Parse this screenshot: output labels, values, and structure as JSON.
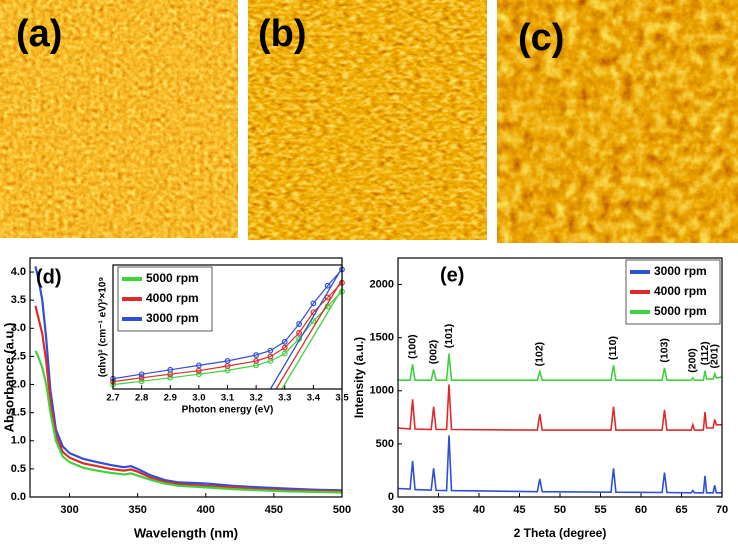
{
  "panel_labels": [
    "(a)",
    "(b)",
    "(c)",
    "(d)",
    "(e)"
  ],
  "chart_data": [
    {
      "type": "line",
      "y_label": "Absorbance (a.u.)",
      "x_label": "Wavelength (nm)",
      "xlim": [
        271,
        500
      ],
      "xticks": [
        300,
        350,
        400,
        450,
        500
      ],
      "ylim": [
        0,
        4.25
      ],
      "yticks": [
        {
          "value": 0,
          "label": "0.0"
        },
        0.5,
        {
          "value": 1,
          "label": "1.0"
        },
        1.5,
        {
          "value": 2,
          "label": "2.0"
        },
        2.5,
        {
          "value": 3,
          "label": "3.0"
        },
        3.5,
        {
          "value": 4,
          "label": "4.0"
        }
      ],
      "x": [
        275,
        277,
        280,
        283,
        286,
        290,
        295,
        300,
        310,
        320,
        330,
        340,
        345,
        350,
        360,
        370,
        380,
        400,
        420,
        440,
        460,
        480,
        500
      ],
      "series": [
        {
          "color": "#2f4fd8",
          "values": [
            4.1,
            3.9,
            3.5,
            2.8,
            1.9,
            1.2,
            0.9,
            0.78,
            0.68,
            0.62,
            0.57,
            0.53,
            0.55,
            0.5,
            0.38,
            0.3,
            0.26,
            0.24,
            0.2,
            0.17,
            0.15,
            0.13,
            0.12
          ]
        },
        {
          "color": "#e02a2a",
          "values": [
            3.4,
            3.2,
            2.9,
            2.4,
            1.7,
            1.1,
            0.8,
            0.7,
            0.6,
            0.55,
            0.5,
            0.47,
            0.49,
            0.45,
            0.34,
            0.27,
            0.23,
            0.2,
            0.17,
            0.14,
            0.12,
            0.11,
            0.1
          ]
        },
        {
          "color": "#3fd23f",
          "values": [
            2.6,
            2.5,
            2.3,
            2.0,
            1.5,
            1.0,
            0.72,
            0.62,
            0.52,
            0.47,
            0.43,
            0.4,
            0.42,
            0.38,
            0.3,
            0.24,
            0.2,
            0.17,
            0.14,
            0.12,
            0.1,
            0.09,
            0.08
          ]
        }
      ]
    },
    {
      "type": "line",
      "markers": true,
      "legend": "upper left",
      "y_label": "(αhν)² (cm⁻¹ eV)²×10⁹",
      "x_label": "Photon energy (eV)",
      "xlim": [
        2.7,
        3.5
      ],
      "xticks": [
        2.7,
        2.8,
        2.9,
        {
          "value": 3,
          "label": "3.0"
        },
        3.1,
        3.2,
        3.3,
        3.4,
        3.5
      ],
      "ylim": [
        0,
        4.2
      ],
      "x": [
        2.7,
        2.8,
        2.9,
        3.0,
        3.1,
        3.2,
        3.25,
        3.3,
        3.35,
        3.4,
        3.45,
        3.5
      ],
      "series": [
        {
          "name": "5000 rpm",
          "color": "#3fd23f",
          "values": [
            0.15,
            0.26,
            0.38,
            0.5,
            0.63,
            0.8,
            0.95,
            1.2,
            1.7,
            2.3,
            2.8,
            3.3
          ]
        },
        {
          "name": "4000 rpm",
          "color": "#e02a2a",
          "values": [
            0.25,
            0.38,
            0.5,
            0.62,
            0.78,
            0.95,
            1.1,
            1.4,
            1.9,
            2.6,
            3.1,
            3.6
          ]
        },
        {
          "name": "3000 rpm",
          "color": "#2f4fd8",
          "values": [
            0.35,
            0.5,
            0.65,
            0.8,
            0.95,
            1.15,
            1.3,
            1.6,
            2.2,
            2.9,
            3.5,
            4.05
          ]
        }
      ],
      "fits": [
        {
          "color": "#3fd23f",
          "x": [
            3.29,
            3.5
          ],
          "values": [
            0,
            3.4
          ]
        },
        {
          "color": "#e02a2a",
          "x": [
            3.27,
            3.5
          ],
          "values": [
            0,
            3.7
          ]
        },
        {
          "color": "#2f4fd8",
          "x": [
            3.25,
            3.5
          ],
          "values": [
            0,
            4.1
          ]
        }
      ]
    },
    {
      "type": "line",
      "legend": "upper right",
      "y_label": "Intensity (a.u.)",
      "x_label": "2 Theta (degree)",
      "xlim": [
        30,
        70
      ],
      "xticks": [
        30,
        35,
        40,
        45,
        50,
        55,
        60,
        65,
        70
      ],
      "ylim": [
        0,
        2250
      ],
      "yticks": [
        0,
        500,
        1000,
        1500,
        2000
      ],
      "x": [
        30,
        31.5,
        31.8,
        32.1,
        34.1,
        34.4,
        34.7,
        36.0,
        36.3,
        36.6,
        47.2,
        47.5,
        47.8,
        56.3,
        56.6,
        56.9,
        62.6,
        62.9,
        63.2,
        66.2,
        66.4,
        66.6,
        67.7,
        67.9,
        68.1,
        68.9,
        69.1,
        69.3,
        70
      ],
      "series": [
        {
          "name": "3000 rpm",
          "color": "#2f4fd8",
          "values": [
            80,
            75,
            340,
            70,
            65,
            270,
            62,
            60,
            580,
            60,
            50,
            170,
            50,
            45,
            270,
            45,
            42,
            230,
            42,
            40,
            60,
            40,
            40,
            200,
            40,
            40,
            110,
            40,
            40
          ]
        },
        {
          "name": "4000 rpm",
          "color": "#e02a2a",
          "values": [
            650,
            640,
            920,
            640,
            635,
            850,
            635,
            635,
            1060,
            635,
            630,
            780,
            630,
            630,
            850,
            630,
            630,
            820,
            630,
            630,
            680,
            630,
            630,
            800,
            650,
            650,
            730,
            680,
            680
          ]
        },
        {
          "name": "5000 rpm",
          "color": "#3fd23f",
          "values": [
            1100,
            1100,
            1250,
            1100,
            1100,
            1200,
            1100,
            1100,
            1350,
            1100,
            1100,
            1180,
            1100,
            1100,
            1240,
            1100,
            1100,
            1215,
            1100,
            1100,
            1120,
            1100,
            1100,
            1190,
            1110,
            1110,
            1160,
            1120,
            1130
          ]
        }
      ],
      "annotations": [
        {
          "text": "(100)",
          "x": 31.8,
          "y": 1300
        },
        {
          "text": "(002)",
          "x": 34.4,
          "y": 1250
        },
        {
          "text": "(101)",
          "x": 36.3,
          "y": 1400
        },
        {
          "text": "(102)",
          "x": 47.5,
          "y": 1230
        },
        {
          "text": "(110)",
          "x": 56.6,
          "y": 1290
        },
        {
          "text": "(103)",
          "x": 62.9,
          "y": 1265
        },
        {
          "text": "(200)",
          "x": 66.4,
          "y": 1170
        },
        {
          "text": "(112)",
          "x": 67.9,
          "y": 1240
        },
        {
          "text": "(201)",
          "x": 69.1,
          "y": 1210
        }
      ]
    }
  ]
}
